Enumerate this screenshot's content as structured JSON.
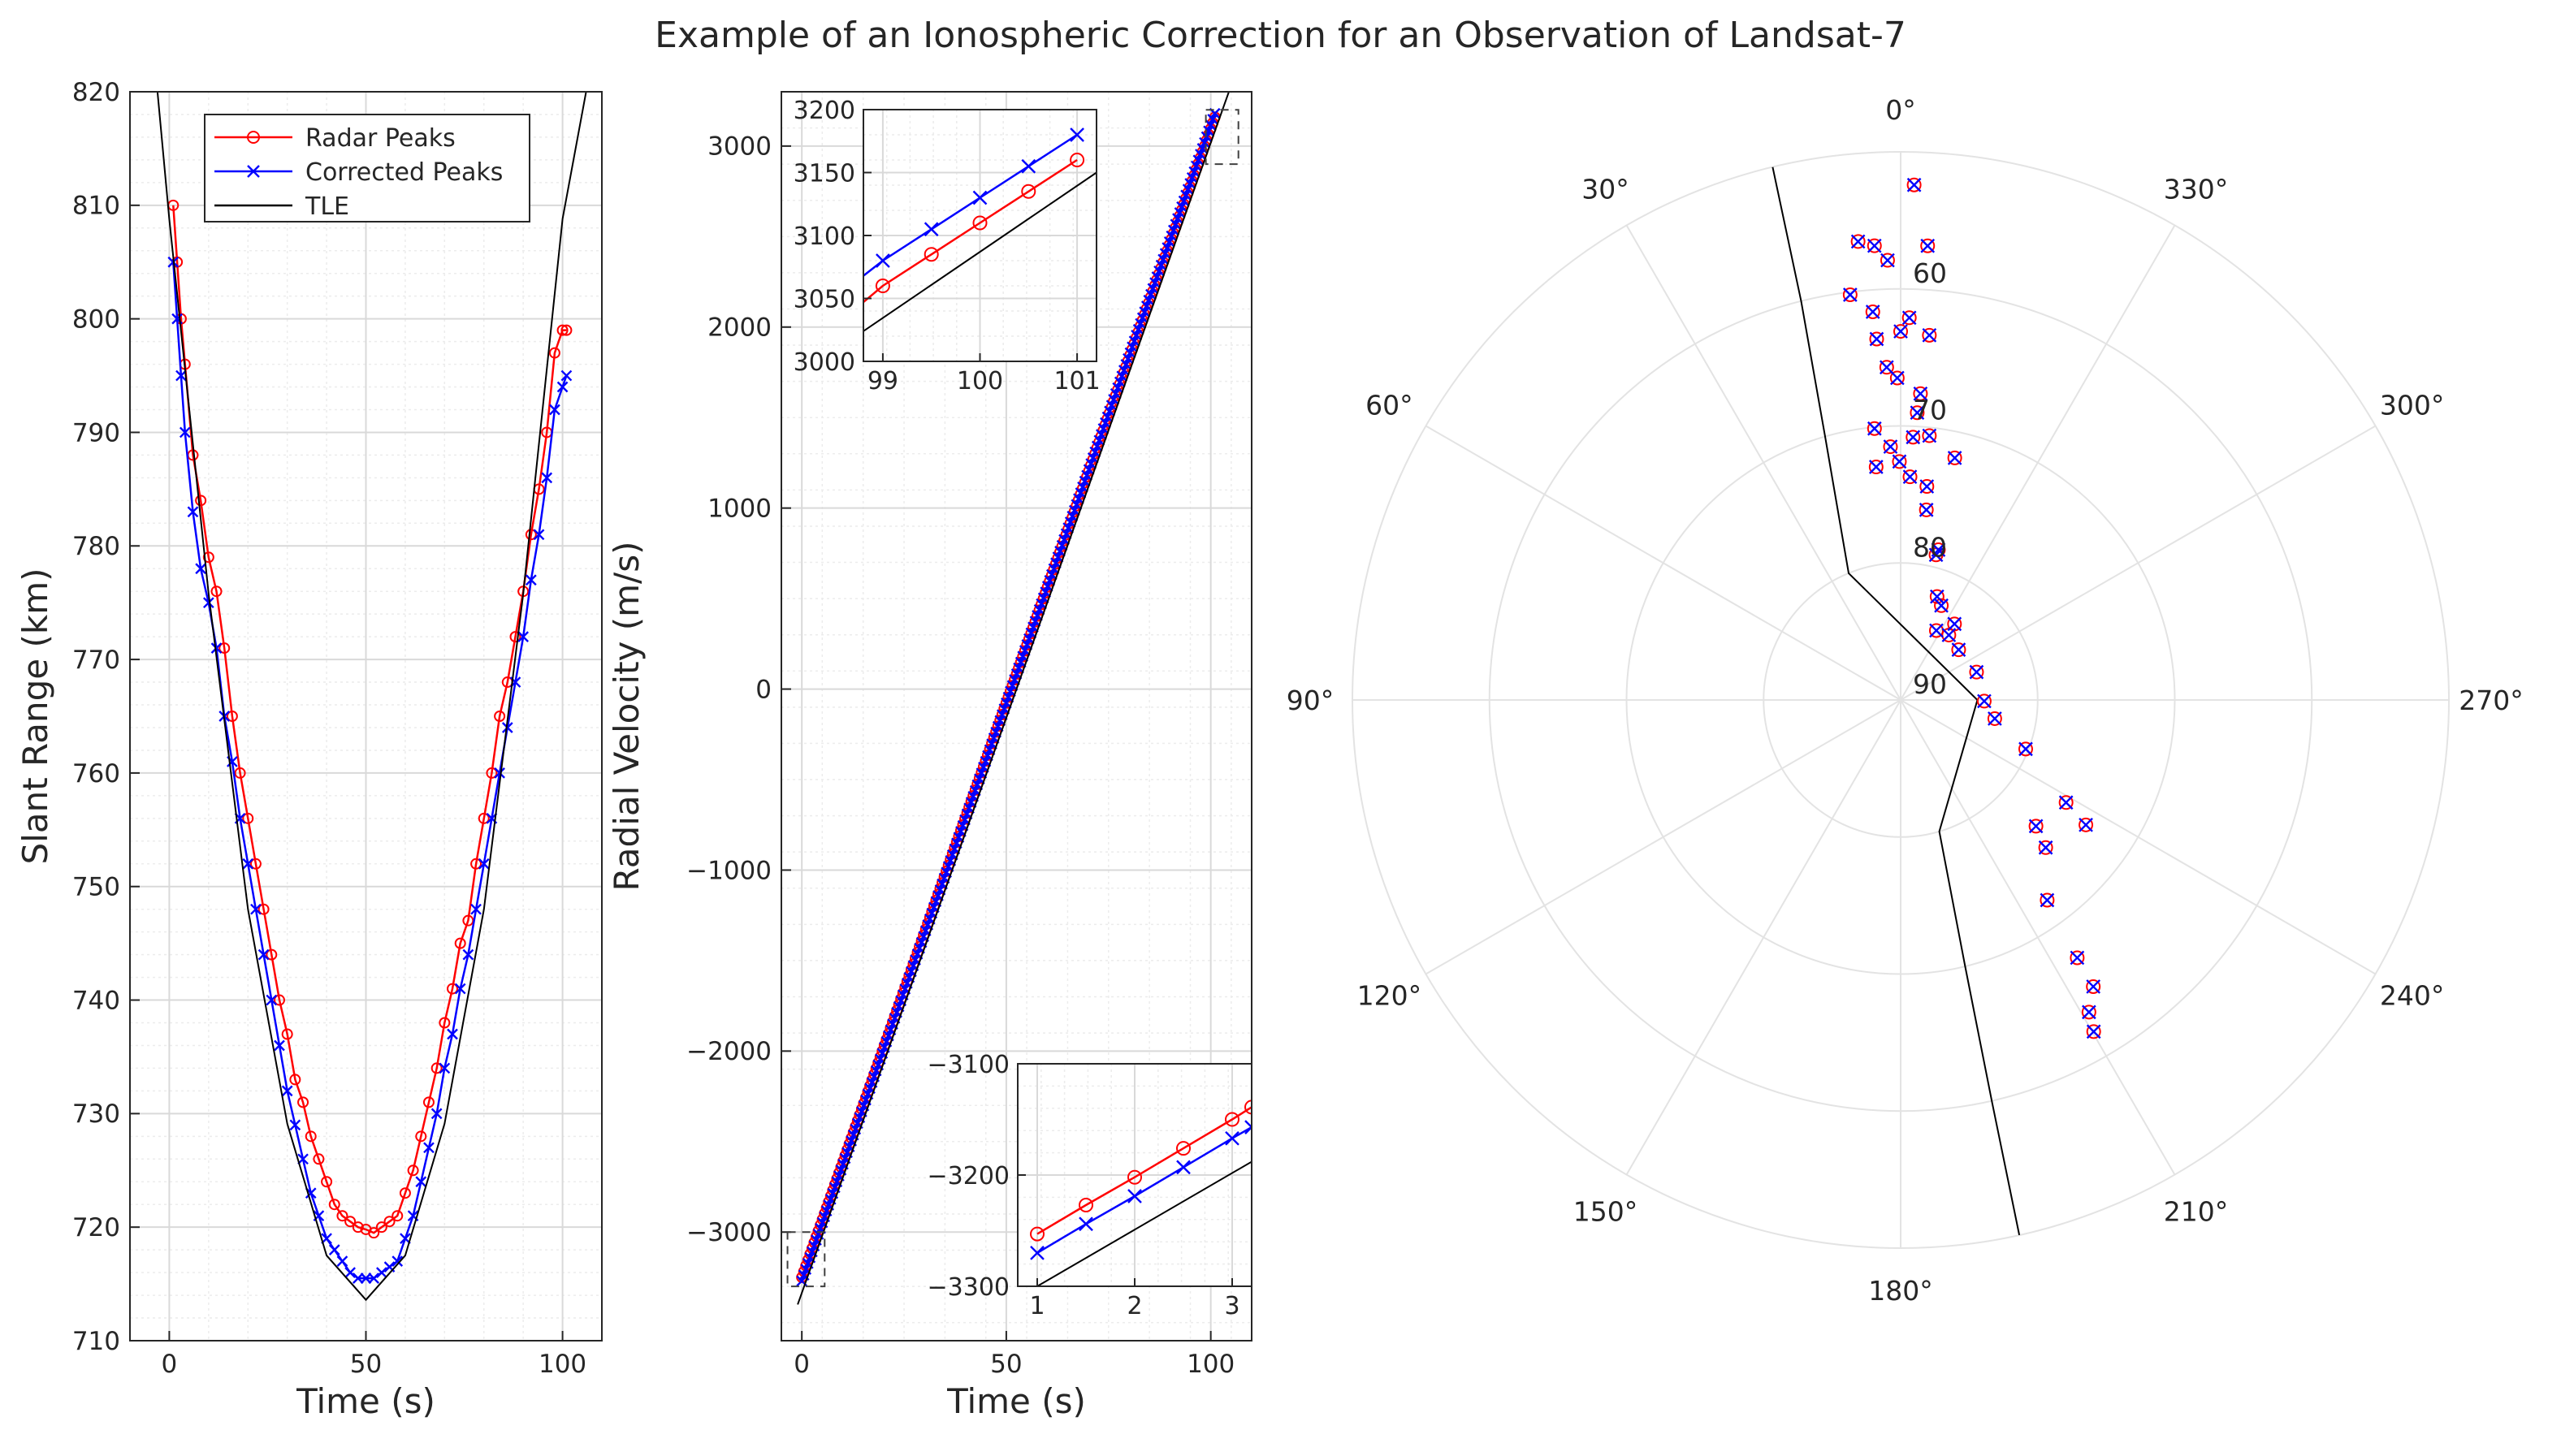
{
  "title": "Example of an Ionospheric Correction for an Observation of Landsat-7",
  "colors": {
    "radar": "#ff0000",
    "corrected": "#0000ff",
    "tle": "#000000",
    "grid": "#d9d9d9",
    "axis": "#262626"
  },
  "chart_data": [
    {
      "type": "line",
      "name": "slant-range",
      "xlabel": "Time (s)",
      "ylabel": "Slant Range (km)",
      "xlim": [
        -10,
        110
      ],
      "ylim": [
        710,
        820
      ],
      "xticks": [
        "0",
        "50",
        "100"
      ],
      "yticks": [
        "710",
        "720",
        "730",
        "740",
        "750",
        "760",
        "770",
        "780",
        "790",
        "800",
        "810",
        "820"
      ],
      "grid": true,
      "legend_position": "top-right",
      "legend": [
        "Radar Peaks",
        "Corrected Peaks",
        "TLE"
      ],
      "series": [
        {
          "name": "Radar Peaks",
          "marker": "circle",
          "x": [
            1,
            2,
            3,
            4,
            6,
            8,
            10,
            12,
            14,
            16,
            18,
            20,
            22,
            24,
            26,
            28,
            30,
            32,
            34,
            36,
            38,
            40,
            42,
            44,
            46,
            48,
            50,
            52,
            54,
            56,
            58,
            60,
            62,
            64,
            66,
            68,
            70,
            72,
            74,
            76,
            78,
            80,
            82,
            84,
            86,
            88,
            90,
            92,
            94,
            96,
            98,
            100,
            101
          ],
          "y": [
            810,
            805,
            800,
            796,
            788,
            784,
            779,
            776,
            771,
            765,
            760,
            756,
            752,
            748,
            744,
            740,
            737,
            733,
            731,
            728,
            726,
            724,
            722,
            721,
            720.5,
            720,
            719.8,
            719.5,
            720,
            720.5,
            721,
            723,
            725,
            728,
            731,
            734,
            738,
            741,
            745,
            747,
            752,
            756,
            760,
            765,
            768,
            772,
            776,
            781,
            785,
            790,
            797,
            799,
            799
          ]
        },
        {
          "name": "Corrected Peaks",
          "marker": "x",
          "x": [
            1,
            2,
            3,
            4,
            6,
            8,
            10,
            12,
            14,
            16,
            18,
            20,
            22,
            24,
            26,
            28,
            30,
            32,
            34,
            36,
            38,
            40,
            42,
            44,
            46,
            48,
            50,
            52,
            54,
            56,
            58,
            60,
            62,
            64,
            66,
            68,
            70,
            72,
            74,
            76,
            78,
            80,
            82,
            84,
            86,
            88,
            90,
            92,
            94,
            96,
            98,
            100,
            101
          ],
          "y": [
            805,
            800,
            795,
            790,
            783,
            778,
            775,
            771,
            765,
            761,
            756,
            752,
            748,
            744,
            740,
            736,
            732,
            729,
            726,
            723,
            721,
            719,
            718,
            717,
            716,
            715.5,
            715.5,
            715.5,
            716,
            716.5,
            717,
            719,
            721,
            724,
            727,
            730,
            734,
            737,
            741,
            744,
            748,
            752,
            756,
            760,
            764,
            768,
            772,
            777,
            781,
            786,
            792,
            794,
            795
          ]
        },
        {
          "name": "TLE",
          "marker": "none",
          "x": [
            -3,
            0,
            10,
            20,
            30,
            40,
            50,
            60,
            70,
            80,
            90,
            100,
            106
          ],
          "y": [
            820,
            808.8,
            775.8,
            748.0,
            729.1,
            717.5,
            713.6,
            717.5,
            729.1,
            748.0,
            775.8,
            808.8,
            820
          ]
        }
      ]
    },
    {
      "type": "line",
      "name": "radial-velocity",
      "xlabel": "Time (s)",
      "ylabel": "Radial Velocity (m/s)",
      "xlim": [
        -5,
        110
      ],
      "ylim": [
        -3600,
        3300
      ],
      "xticks": [
        "0",
        "50",
        "100"
      ],
      "yticks": [
        "−3000",
        "−2000",
        "−1000",
        "0",
        "1000",
        "2000",
        "3000"
      ],
      "grid": true,
      "series": [
        {
          "name": "Radar Peaks",
          "marker": "circle",
          "x": [
            0,
            101
          ],
          "y": [
            -3250,
            3160
          ]
        },
        {
          "name": "Corrected Peaks",
          "marker": "x",
          "x": [
            0,
            101
          ],
          "y": [
            -3270,
            3180
          ]
        },
        {
          "name": "TLE",
          "marker": "none",
          "x": [
            -1,
            106
          ],
          "y": [
            -3400,
            3400
          ]
        }
      ],
      "insets": [
        {
          "name": "top-inset",
          "xlim": [
            98.8,
            101.2
          ],
          "ylim": [
            3000,
            3200
          ],
          "xticks": [
            "99",
            "100",
            "101"
          ],
          "yticks": [
            "3000",
            "3050",
            "3100",
            "3150",
            "3200"
          ],
          "series": [
            {
              "name": "Radar Peaks",
              "x": [
                98.8,
                99,
                99.5,
                100,
                100.5,
                101
              ],
              "y": [
                3047,
                3060,
                3085,
                3110,
                3135,
                3160
              ]
            },
            {
              "name": "Corrected Peaks",
              "x": [
                98.8,
                99,
                99.5,
                100,
                100.5,
                101
              ],
              "y": [
                3068,
                3080,
                3105,
                3130,
                3155,
                3180
              ]
            },
            {
              "name": "TLE",
              "x": [
                98.8,
                101.2
              ],
              "y": [
                3024,
                3150
              ]
            }
          ]
        },
        {
          "name": "bottom-inset",
          "xlim": [
            0.8,
            3.2
          ],
          "ylim": [
            -3300,
            -3100
          ],
          "xticks": [
            "1",
            "2",
            "3"
          ],
          "yticks": [
            "−3300",
            "−3200",
            "−3100"
          ],
          "series": [
            {
              "name": "Radar Peaks",
              "x": [
                1,
                1.5,
                2,
                2.5,
                3,
                3.2
              ],
              "y": [
                -3253,
                -3227,
                -3202,
                -3176,
                -3150,
                -3139
              ]
            },
            {
              "name": "Corrected Peaks",
              "x": [
                1,
                1.5,
                2,
                2.5,
                3,
                3.2
              ],
              "y": [
                -3270,
                -3244,
                -3219,
                -3193,
                -3167,
                -3157
              ]
            },
            {
              "name": "TLE",
              "x": [
                1,
                3.2
              ],
              "y": [
                -3300,
                -3188
              ]
            }
          ]
        }
      ]
    },
    {
      "type": "scatter",
      "name": "sky-track",
      "coordinate_system": "polar",
      "theta_zero": "top",
      "theta_direction": "counterclockwise",
      "r_ticks": [
        "60",
        "70",
        "80",
        "90"
      ],
      "r_tick_values": [
        60,
        70,
        80,
        90
      ],
      "r_center_value": 90,
      "r_outer_value": 50,
      "theta_labels": [
        "0°",
        "30°",
        "60°",
        "90°",
        "120°",
        "150°",
        "180°",
        "210°",
        "240°",
        "270°",
        "300°",
        "330°"
      ],
      "grid": true,
      "series": [
        {
          "name": "Radar Peaks",
          "marker": "circle",
          "points": [
            [
              358.5,
              52.4
            ],
            [
              5.3,
              56.4
            ],
            [
              3.3,
              56.8
            ],
            [
              1.7,
              57.9
            ],
            [
              356.6,
              56.8
            ],
            [
              7.1,
              60.2
            ],
            [
              4.1,
              61.6
            ],
            [
              358.7,
              62.1
            ],
            [
              360,
              63.1
            ],
            [
              3.8,
              63.6
            ],
            [
              355.5,
              63.3
            ],
            [
              2.4,
              65.7
            ],
            [
              0.6,
              66.5
            ],
            [
              356.3,
              67.6
            ],
            [
              356.7,
              69.0
            ],
            [
              353.8,
              70.6
            ],
            [
              357.3,
              70.8
            ],
            [
              5.5,
              70.1
            ],
            [
              2.3,
              71.5
            ],
            [
              6.0,
              72.9
            ],
            [
              0.3,
              72.6
            ],
            [
              357.6,
              73.7
            ],
            [
              347.4,
              71.9
            ],
            [
              353.0,
              74.3
            ],
            [
              352.3,
              76.0
            ],
            [
              345.9,
              78.7
            ],
            [
              346.3,
              79.1
            ],
            [
              340.6,
              82.0
            ],
            [
              336.7,
              82.5
            ],
            [
              332.8,
              84.3
            ],
            [
              324.7,
              83.2
            ],
            [
              323.4,
              84.1
            ],
            [
              310.9,
              84.4
            ],
            [
              290.2,
              84.1
            ],
            [
              269.2,
              83.9
            ],
            [
              258.8,
              83.0
            ],
            [
              248.6,
              80.2
            ],
            [
              238.2,
              75.8
            ],
            [
              236.0,
              73.7
            ],
            [
              227.0,
              76.5
            ],
            [
              224.5,
              74.9
            ],
            [
              216.2,
              71.9
            ],
            [
              214.4,
              67.2
            ],
            [
              213.9,
              64.8
            ],
            [
              211.1,
              63.4
            ],
            [
              210.2,
              62.0
            ]
          ]
        },
        {
          "name": "Corrected Peaks",
          "marker": "x",
          "points": [
            [
              358.5,
              52.4
            ],
            [
              5.3,
              56.4
            ],
            [
              3.3,
              56.8
            ],
            [
              1.7,
              57.9
            ],
            [
              356.6,
              56.8
            ],
            [
              7.1,
              60.2
            ],
            [
              4.1,
              61.6
            ],
            [
              358.7,
              62.1
            ],
            [
              360,
              63.1
            ],
            [
              3.8,
              63.6
            ],
            [
              355.5,
              63.3
            ],
            [
              2.4,
              65.7
            ],
            [
              0.6,
              66.5
            ],
            [
              356.3,
              67.6
            ],
            [
              356.7,
              69.0
            ],
            [
              353.8,
              70.6
            ],
            [
              357.3,
              70.8
            ],
            [
              5.5,
              70.1
            ],
            [
              2.3,
              71.5
            ],
            [
              6.0,
              72.9
            ],
            [
              0.3,
              72.6
            ],
            [
              357.6,
              73.7
            ],
            [
              347.4,
              71.9
            ],
            [
              353.0,
              74.3
            ],
            [
              352.3,
              76.0
            ],
            [
              345.9,
              78.7
            ],
            [
              346.3,
              79.1
            ],
            [
              340.6,
              82.0
            ],
            [
              336.7,
              82.5
            ],
            [
              332.8,
              84.3
            ],
            [
              324.7,
              83.2
            ],
            [
              323.4,
              84.1
            ],
            [
              310.9,
              84.4
            ],
            [
              290.2,
              84.1
            ],
            [
              269.2,
              83.9
            ],
            [
              258.8,
              83.0
            ],
            [
              248.6,
              80.2
            ],
            [
              238.2,
              75.8
            ],
            [
              236.0,
              73.7
            ],
            [
              227.0,
              76.5
            ],
            [
              224.5,
              74.9
            ],
            [
              216.2,
              71.9
            ],
            [
              214.4,
              67.2
            ],
            [
              213.9,
              64.8
            ],
            [
              211.1,
              63.4
            ],
            [
              210.2,
              62.0
            ]
          ]
        },
        {
          "name": "TLE",
          "marker": "none",
          "points": [
            [
              13.5,
              50.0
            ],
            [
              14.0,
              60.0
            ],
            [
              16.0,
              70.0
            ],
            [
              22.3,
              80.0
            ],
            [
              270.0,
              84.4
            ],
            [
              196.4,
              80.0
            ],
            [
              193.6,
              70.0
            ],
            [
              192.8,
              60.0
            ],
            [
              192.5,
              50.0
            ]
          ]
        }
      ]
    }
  ]
}
